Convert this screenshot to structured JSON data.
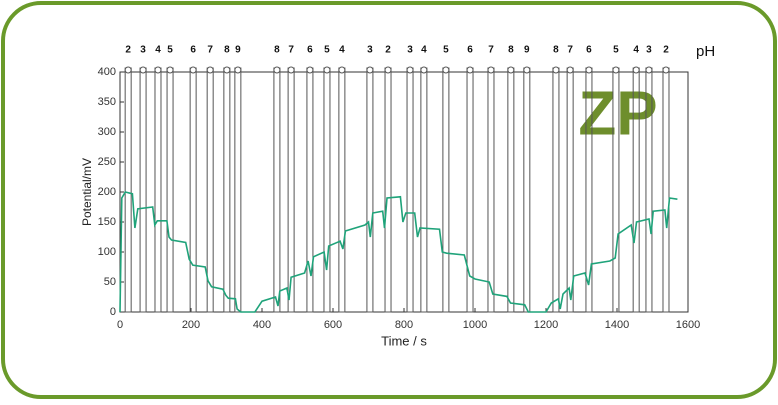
{
  "chart_data": {
    "type": "line",
    "xlabel": "Time / s",
    "ylabel": "Potential/mV",
    "marker_axis_label": "pH",
    "logo": "ZP",
    "xlim": [
      0,
      1600
    ],
    "xticks": [
      0,
      200,
      400,
      600,
      800,
      1000,
      1200,
      1400,
      1600
    ],
    "ylim": [
      0,
      400
    ],
    "yticks": [
      0,
      50,
      100,
      150,
      200,
      250,
      300,
      350,
      400
    ],
    "series": [
      {
        "color": "#1fa37a",
        "x": [
          0,
          5,
          15,
          35,
          42,
          50,
          92,
          98,
          105,
          132,
          138,
          145,
          185,
          195,
          205,
          240,
          248,
          258,
          290,
          298,
          305,
          325,
          330,
          340,
          380,
          400,
          438,
          445,
          450,
          470,
          476,
          482,
          520,
          530,
          538,
          545,
          575,
          582,
          588,
          620,
          628,
          635,
          690,
          700,
          705,
          712,
          740,
          745,
          752,
          790,
          797,
          805,
          830,
          838,
          845,
          900,
          908,
          920,
          970,
          985,
          1000,
          1040,
          1050,
          1090,
          1100,
          1140,
          1150,
          1200,
          1215,
          1235,
          1240,
          1248,
          1265,
          1270,
          1278,
          1310,
          1320,
          1328,
          1380,
          1395,
          1403,
          1440,
          1448,
          1455,
          1490,
          1496,
          1502,
          1535,
          1540,
          1548,
          1570
        ],
        "values": [
          0,
          190,
          200,
          197,
          140,
          172,
          175,
          145,
          152,
          152,
          125,
          120,
          116,
          88,
          78,
          75,
          52,
          42,
          38,
          28,
          23,
          22,
          5,
          0,
          0,
          18,
          25,
          10,
          35,
          40,
          20,
          58,
          65,
          85,
          60,
          92,
          100,
          70,
          110,
          118,
          105,
          135,
          145,
          150,
          125,
          165,
          168,
          140,
          190,
          192,
          150,
          165,
          165,
          125,
          140,
          138,
          100,
          98,
          95,
          60,
          55,
          50,
          30,
          26,
          15,
          12,
          0,
          0,
          15,
          22,
          5,
          30,
          40,
          20,
          60,
          65,
          45,
          80,
          85,
          90,
          130,
          145,
          115,
          150,
          155,
          130,
          168,
          170,
          140,
          190,
          188
        ]
      }
    ],
    "markers": [
      {
        "label": "2",
        "x": 23
      },
      {
        "label": "3",
        "x": 65
      },
      {
        "label": "4",
        "x": 107
      },
      {
        "label": "5",
        "x": 141
      },
      {
        "label": "6",
        "x": 206
      },
      {
        "label": "7",
        "x": 254
      },
      {
        "label": "8",
        "x": 301
      },
      {
        "label": "9",
        "x": 332
      },
      {
        "label": "8",
        "x": 442
      },
      {
        "label": "7",
        "x": 482
      },
      {
        "label": "6",
        "x": 535
      },
      {
        "label": "5",
        "x": 583
      },
      {
        "label": "4",
        "x": 625
      },
      {
        "label": "3",
        "x": 704
      },
      {
        "label": "2",
        "x": 755
      },
      {
        "label": "3",
        "x": 817
      },
      {
        "label": "4",
        "x": 856
      },
      {
        "label": "5",
        "x": 918
      },
      {
        "label": "6",
        "x": 986
      },
      {
        "label": "7",
        "x": 1045
      },
      {
        "label": "8",
        "x": 1101
      },
      {
        "label": "9",
        "x": 1146
      },
      {
        "label": "8",
        "x": 1228
      },
      {
        "label": "7",
        "x": 1268
      },
      {
        "label": "6",
        "x": 1321
      },
      {
        "label": "5",
        "x": 1397
      },
      {
        "label": "4",
        "x": 1454
      },
      {
        "label": "3",
        "x": 1490
      },
      {
        "label": "2",
        "x": 1538
      }
    ]
  }
}
